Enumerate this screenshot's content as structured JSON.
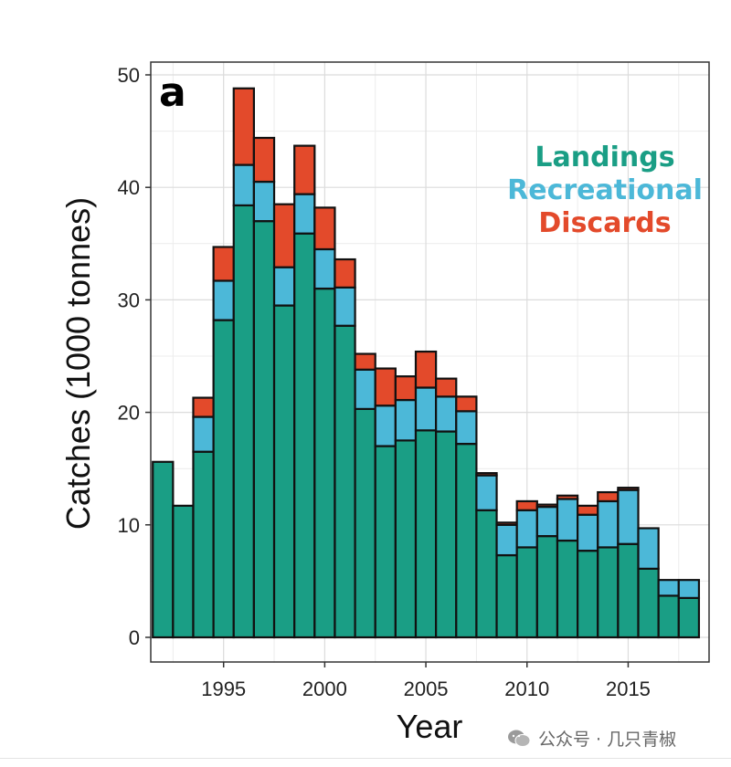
{
  "chart_data": {
    "type": "bar",
    "stacked": true,
    "panel_label": "a",
    "xlabel": "Year",
    "ylabel": "Catches (1000 tonnes)",
    "ylim": [
      0,
      50
    ],
    "xlim": [
      1991.4,
      2019.0
    ],
    "yticks": [
      0,
      10,
      20,
      30,
      40,
      50
    ],
    "xticks": [
      1995,
      2000,
      2005,
      2010,
      2015
    ],
    "grid": true,
    "legend_position": "top-right",
    "years": [
      1992,
      1993,
      1994,
      1995,
      1996,
      1997,
      1998,
      1999,
      2000,
      2001,
      2002,
      2003,
      2004,
      2005,
      2006,
      2007,
      2008,
      2009,
      2010,
      2011,
      2012,
      2013,
      2014,
      2015,
      2016,
      2017,
      2018
    ],
    "series": [
      {
        "name": "Landings",
        "color": "#1a9e85",
        "values": [
          15.6,
          11.7,
          16.5,
          28.2,
          38.4,
          37.0,
          29.5,
          35.9,
          31.0,
          27.7,
          20.3,
          17.0,
          17.5,
          18.4,
          18.3,
          17.2,
          11.3,
          7.3,
          8.0,
          9.0,
          8.6,
          7.7,
          8.0,
          8.3,
          6.1,
          3.7,
          3.5
        ]
      },
      {
        "name": "Recreational",
        "color": "#4cb8d8",
        "values": [
          0,
          0,
          3.1,
          3.5,
          3.6,
          3.5,
          3.4,
          3.5,
          3.5,
          3.4,
          3.5,
          3.6,
          3.6,
          3.8,
          3.1,
          2.9,
          3.1,
          2.7,
          3.3,
          2.6,
          3.7,
          3.2,
          4.1,
          4.8,
          3.6,
          1.4,
          1.6
        ]
      },
      {
        "name": "Discards",
        "color": "#e34a2b",
        "values": [
          0,
          0,
          1.7,
          3.0,
          6.8,
          3.9,
          5.6,
          4.3,
          3.7,
          2.5,
          1.4,
          3.3,
          2.1,
          3.2,
          1.6,
          1.3,
          0.2,
          0.2,
          0.8,
          0.2,
          0.3,
          0.8,
          0.8,
          0.2,
          0,
          0,
          0
        ]
      }
    ]
  },
  "footer": {
    "icon": "wechat-icon",
    "text": "公众号 · 几只青椒"
  }
}
